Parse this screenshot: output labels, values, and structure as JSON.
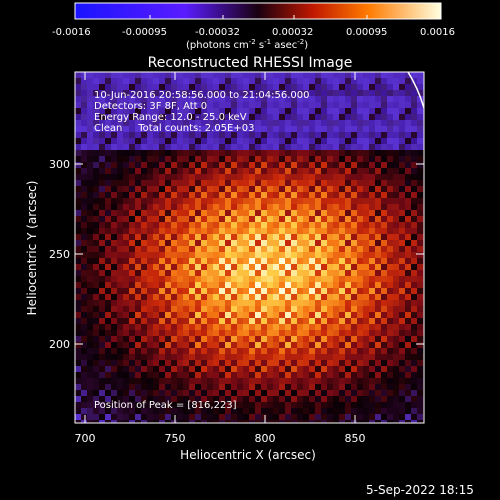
{
  "colorbar": {
    "ticks": [
      "-0.0016",
      "-0.00095",
      "-0.00032",
      "0.00032",
      "0.00095",
      "0.0016"
    ],
    "unit_main": "(photons cm",
    "unit_exp1": "-2",
    "unit_mid": " s",
    "unit_exp2": "-1",
    "unit_tail": " asec",
    "unit_exp3": "-2",
    "unit_close": ")"
  },
  "plot": {
    "title": "Reconstructed RHESSI Image",
    "xlabel": "Heliocentric X (arcsec)",
    "ylabel": "Heliocentric Y (arcsec)",
    "xticks": [
      "700",
      "750",
      "800",
      "850"
    ],
    "yticks": [
      "200",
      "250",
      "300"
    ]
  },
  "info": {
    "line1": "10-Jun-2016 20:58:56.000 to 21:04:56.000",
    "line2": "Detectors: 3F 8F, Att 0",
    "line3": "Energy Range: 12.0 - 25.0 keV",
    "line4": "Clean     Total counts: 2.05E+03",
    "peak": "Position of Peak = [816,223]"
  },
  "footer": {
    "timestamp": "5-Sep-2022 18:15"
  }
}
